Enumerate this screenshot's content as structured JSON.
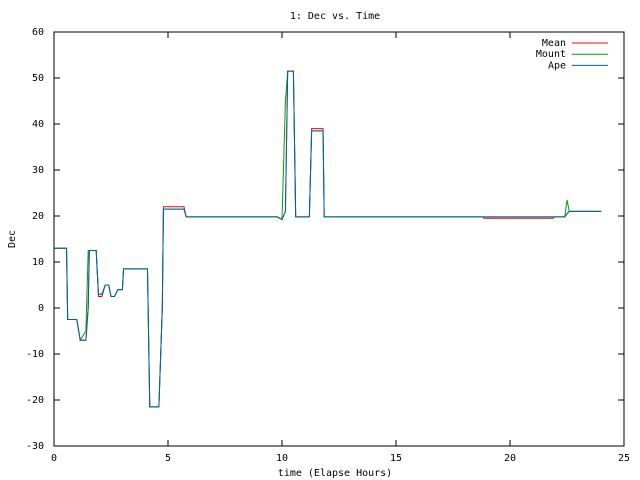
{
  "chart_data": {
    "type": "line",
    "title": "1: Dec vs. Time",
    "x_label": "time (Elapse Hours)",
    "y_label": "Dec",
    "x": [
      0,
      0.55,
      0.6,
      1.0,
      1.15,
      1.4,
      1.5,
      1.55,
      1.85,
      1.95,
      2.1,
      2.25,
      2.4,
      2.5,
      2.65,
      2.8,
      3.0,
      3.05,
      4.1,
      4.2,
      4.6,
      4.75,
      4.8,
      5.7,
      5.8,
      9.8,
      10.0,
      10.15,
      10.25,
      10.5,
      10.6,
      11.2,
      11.3,
      11.8,
      11.85,
      18.8,
      18.85,
      21.9,
      21.95,
      22.4,
      22.5,
      22.6,
      24.0
    ],
    "series": [
      {
        "name": "Mean",
        "color": "#ff0000",
        "values": [
          13,
          13,
          -2.5,
          -2.5,
          -7,
          -7,
          0,
          12.5,
          12.5,
          2.5,
          2.5,
          5,
          5,
          2.5,
          2.5,
          4,
          4,
          8.5,
          8.5,
          -21.5,
          -21.5,
          0,
          22,
          22,
          19.8,
          19.8,
          19.2,
          21,
          51.5,
          51.5,
          19.8,
          19.8,
          39,
          39,
          19.8,
          19.8,
          19.5,
          19.5,
          19.8,
          19.8,
          20.5,
          21,
          21
        ]
      },
      {
        "name": "Mount",
        "color": "#00a000",
        "values": [
          13,
          13,
          -2.5,
          -2.5,
          -7,
          -5,
          12.5,
          12.5,
          12.5,
          3,
          3,
          5,
          5,
          2.5,
          2.5,
          4,
          4,
          8.5,
          8.5,
          -21.5,
          -21.5,
          0,
          21.5,
          21.5,
          19.8,
          19.8,
          19.2,
          45,
          51.5,
          51.5,
          19.8,
          19.8,
          38.5,
          38.5,
          19.8,
          19.8,
          19.8,
          19.8,
          19.8,
          19.8,
          23.5,
          21,
          21
        ]
      },
      {
        "name": "Ape",
        "color": "#0060ad",
        "values": [
          13,
          13,
          -2.5,
          -2.5,
          -7,
          -7,
          0,
          12.5,
          12.5,
          3,
          3,
          5,
          5,
          2.5,
          2.5,
          4,
          4,
          8.5,
          8.5,
          -21.5,
          -21.5,
          0,
          21.5,
          21.5,
          19.8,
          19.8,
          19.2,
          21,
          51.5,
          51.5,
          19.8,
          19.8,
          38.5,
          38.5,
          19.8,
          19.8,
          19.8,
          19.8,
          19.8,
          19.8,
          20.5,
          21,
          21
        ]
      }
    ],
    "xlim": [
      0,
      25
    ],
    "xticks": [
      0,
      5,
      10,
      15,
      20,
      25
    ],
    "ylim": [
      -30,
      60
    ],
    "yticks": [
      -30,
      -20,
      -10,
      0,
      10,
      20,
      30,
      40,
      50,
      60
    ],
    "legend": "top-right"
  }
}
